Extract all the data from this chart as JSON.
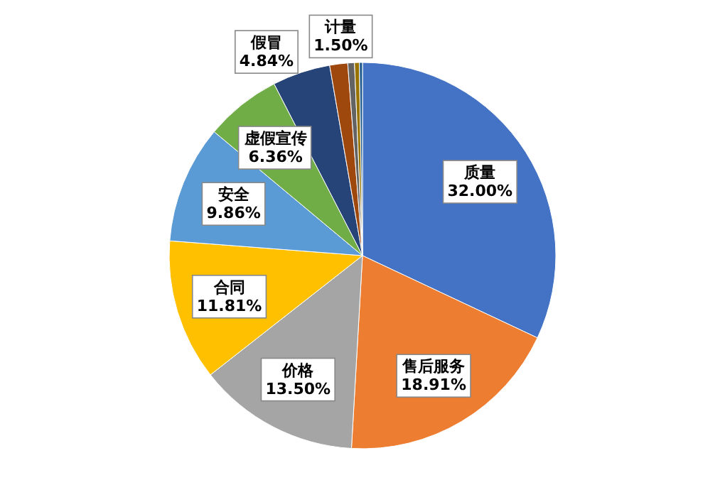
{
  "chart_data": {
    "type": "pie",
    "categories": [
      "质量",
      "售后服务",
      "价格",
      "合同",
      "安全",
      "虚假宣传",
      "假冒",
      "计量",
      null,
      null,
      null
    ],
    "values": [
      32.0,
      18.91,
      13.5,
      11.81,
      9.86,
      6.36,
      4.84,
      1.5,
      0.56,
      0.4,
      0.26
    ],
    "colors": [
      "#4472c4",
      "#ed7d31",
      "#a5a5a5",
      "#ffc000",
      "#5b9bd5",
      "#70ad47",
      "#264478",
      "#9e480e",
      "#636363",
      "#997300",
      "#255e91"
    ],
    "value_labels": [
      "32.00%",
      "18.91%",
      "13.50%",
      "11.81%",
      "9.86%",
      "6.36%",
      "4.84%",
      "1.50%",
      null,
      null,
      null
    ]
  }
}
